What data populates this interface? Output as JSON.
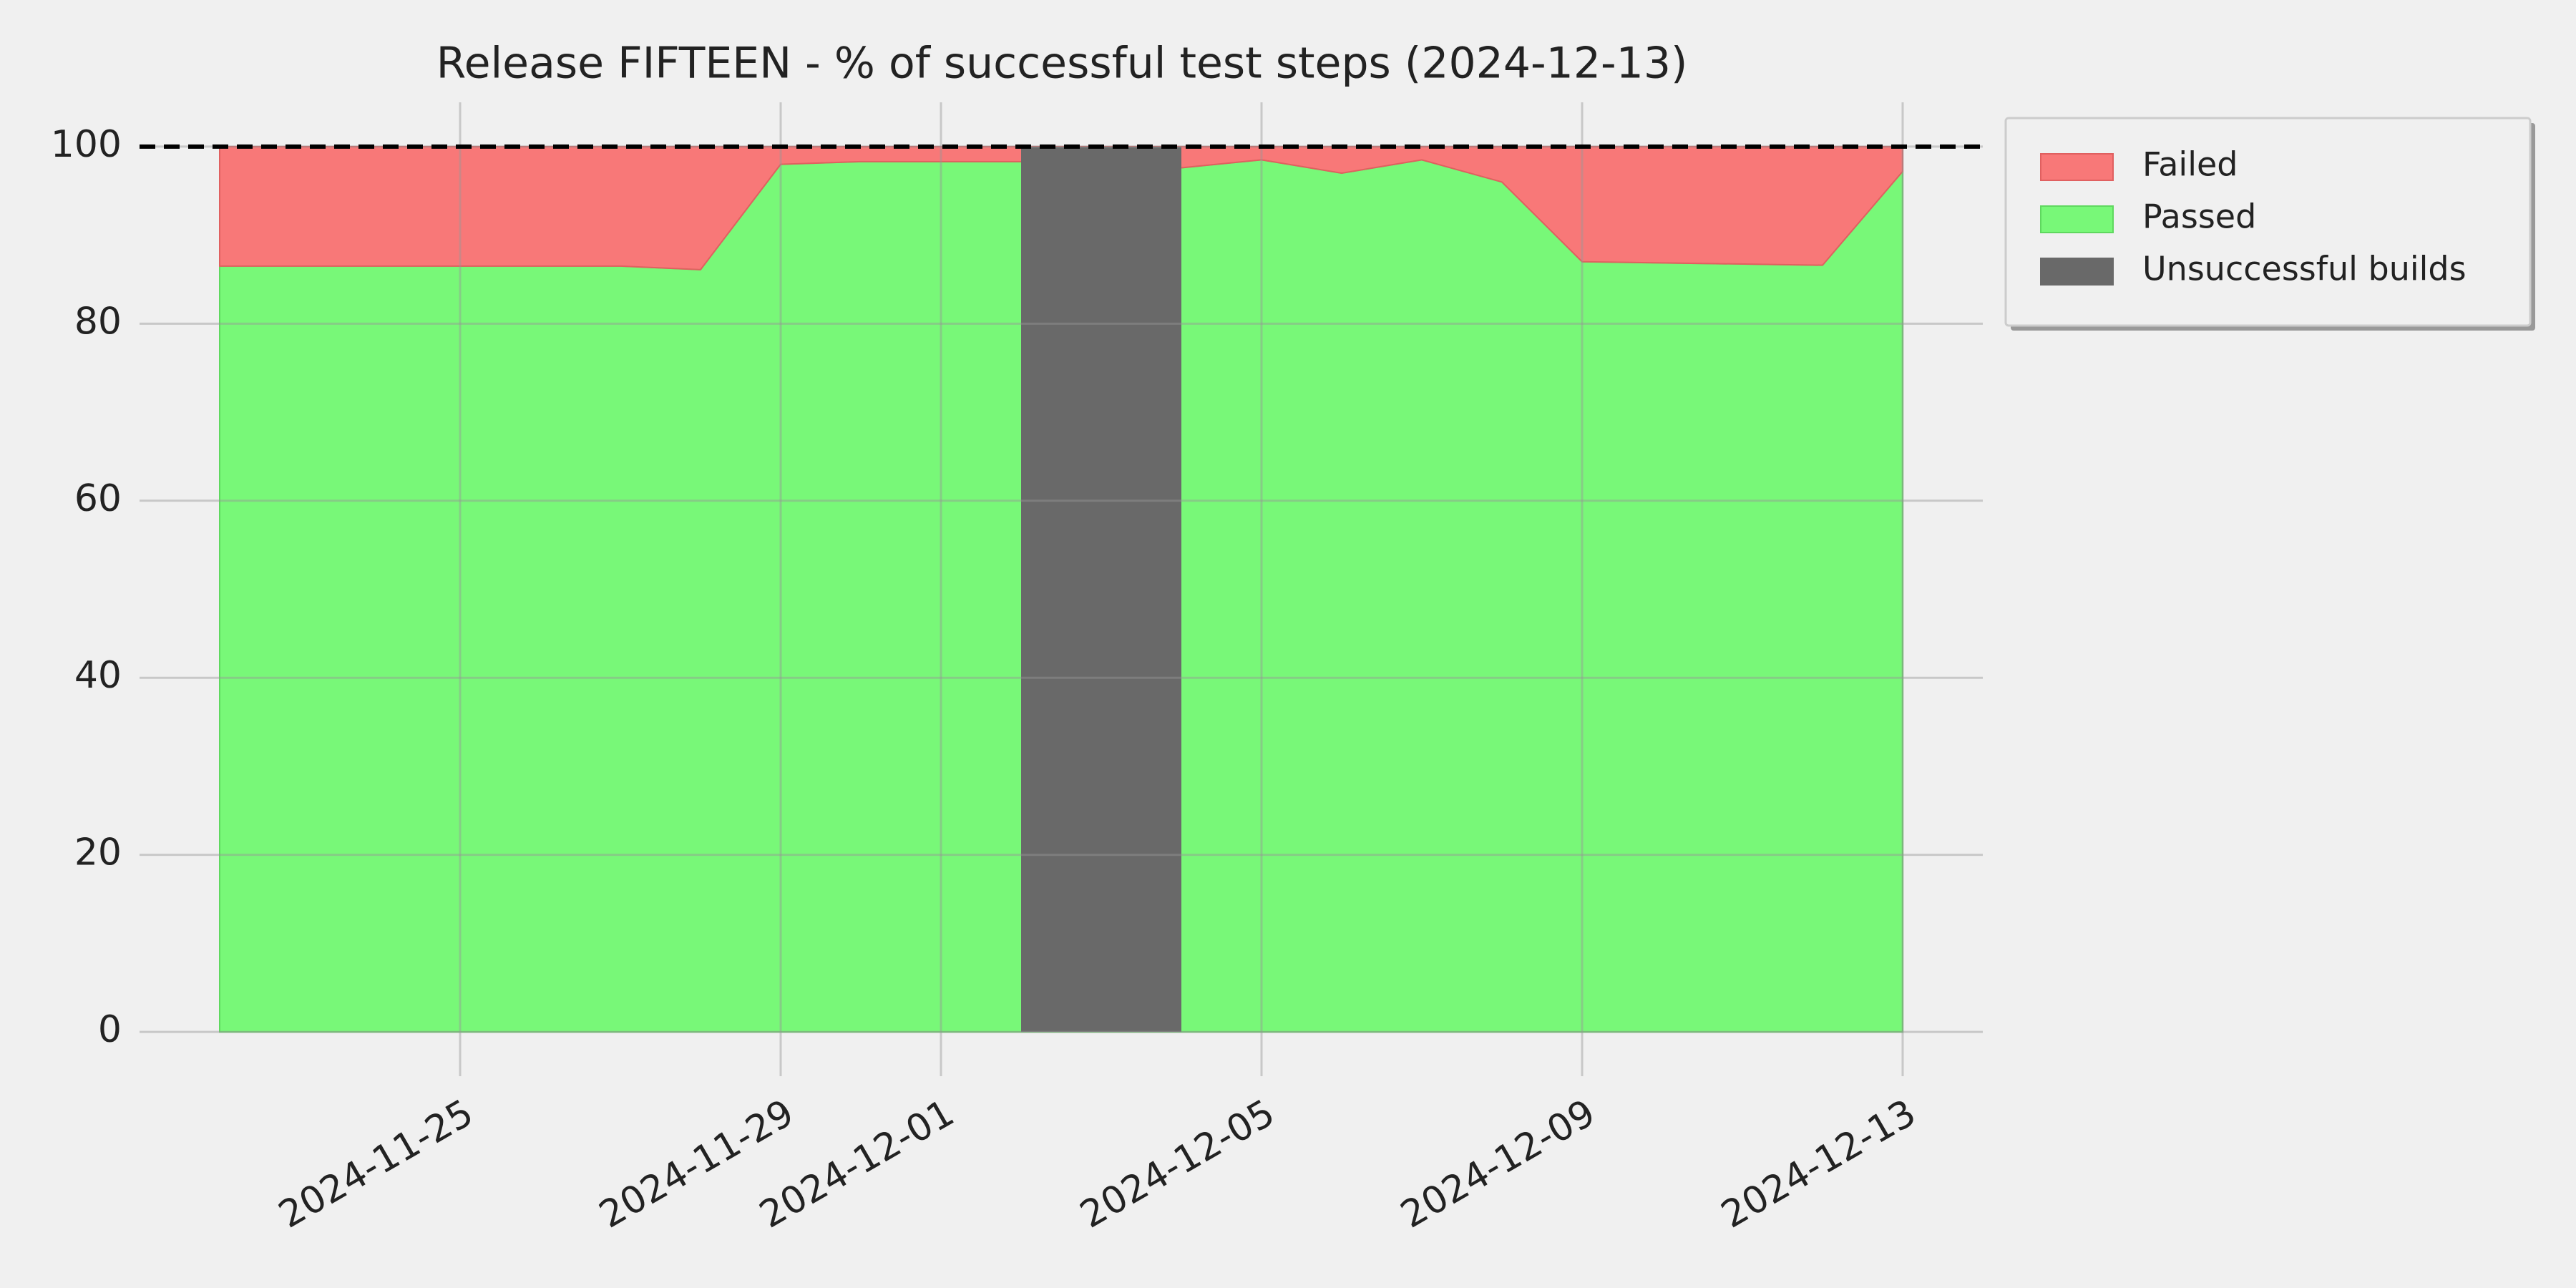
{
  "chart_data": {
    "type": "stacked_area",
    "title": "Release FIFTEEN - % of successful test steps (2024-12-13)",
    "x": [
      "2024-11-22",
      "2024-11-27",
      "2024-11-28",
      "2024-11-29",
      "2024-11-30",
      "2024-12-01",
      "2024-12-02",
      "2024-12-04",
      "2024-12-05",
      "2024-12-06",
      "2024-12-07",
      "2024-12-08",
      "2024-12-09",
      "2024-12-12",
      "2024-12-13"
    ],
    "series": [
      {
        "name": "Failed",
        "color": "#f87878",
        "values": [
          13.5,
          13.5,
          13.9,
          2,
          1.7,
          1.7,
          1.7,
          2.4,
          1.5,
          3,
          1.5,
          4,
          13,
          13.4,
          2.8
        ]
      },
      {
        "name": "Passed",
        "color": "#78f878",
        "values": [
          86.5,
          86.5,
          86.1,
          98,
          98.3,
          98.3,
          98.3,
          97.6,
          98.5,
          97,
          98.5,
          96,
          87,
          86.6,
          97.2
        ]
      }
    ],
    "unsuccessful_builds": {
      "name": "Unsuccessful builds",
      "color": "#696969",
      "start": [
        "2024-12-02"
      ],
      "end": [
        "2024-12-04"
      ],
      "values": [
        100
      ]
    },
    "reference_line": 100,
    "xlim": [
      "2024-11-21",
      "2024-12-14"
    ],
    "xticks": [
      "2024-11-25",
      "2024-11-29",
      "2024-12-01",
      "2024-12-05",
      "2024-12-09",
      "2024-12-13"
    ],
    "ylim": [
      -5,
      105
    ],
    "yticks": [
      0,
      20,
      40,
      60,
      80,
      100
    ],
    "grid": true,
    "legend": "upper right outside"
  }
}
